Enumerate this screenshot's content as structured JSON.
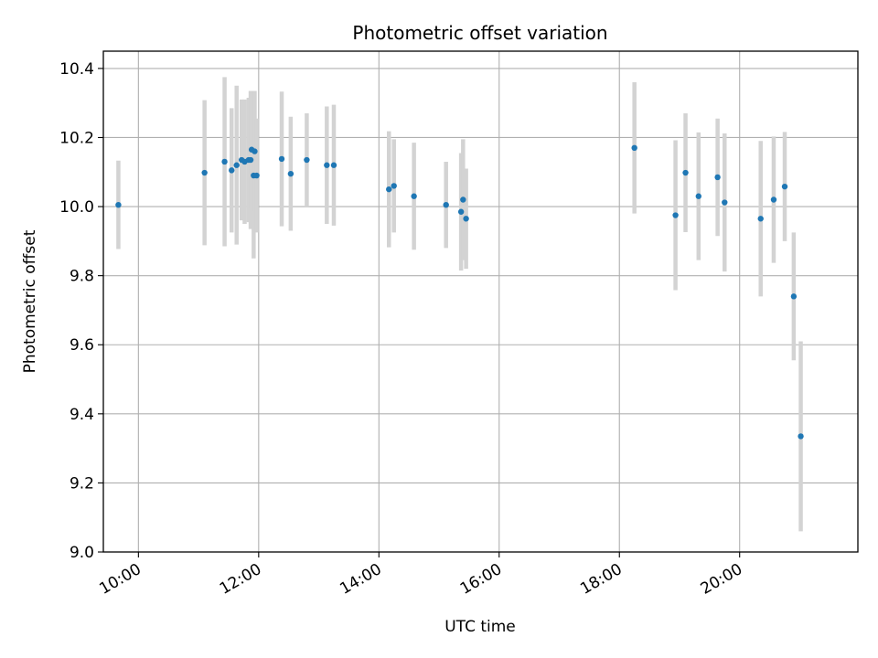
{
  "chart_data": {
    "type": "scatter",
    "title": "Photometric offset variation",
    "xlabel": "UTC time",
    "ylabel": "Photometric offset",
    "x_axis_type": "time",
    "xlim": [
      "09:25",
      "21:58"
    ],
    "ylim": [
      9.0,
      10.45
    ],
    "x_ticks": [
      "10:00",
      "12:00",
      "14:00",
      "16:00",
      "18:00",
      "20:00"
    ],
    "y_ticks": [
      9.0,
      9.2,
      9.4,
      9.6,
      9.8,
      10.0,
      10.2,
      10.4
    ],
    "y_tick_labels": [
      "9.0",
      "9.2",
      "9.4",
      "9.6",
      "9.8",
      "10.0",
      "10.2",
      "10.4"
    ],
    "grid": true,
    "legend": "none",
    "colors": {
      "marker": "#1f77b4",
      "errorbar": "#d3d3d3",
      "grid": "#b0b0b0"
    },
    "points": [
      {
        "x": "09:40",
        "y": 10.005,
        "err": 0.128
      },
      {
        "x": "11:06",
        "y": 10.098,
        "err": 0.21
      },
      {
        "x": "11:26",
        "y": 10.13,
        "err": 0.245
      },
      {
        "x": "11:33",
        "y": 10.105,
        "err": 0.18
      },
      {
        "x": "11:38",
        "y": 10.12,
        "err": 0.23
      },
      {
        "x": "11:43",
        "y": 10.135,
        "err": 0.175
      },
      {
        "x": "11:46",
        "y": 10.13,
        "err": 0.18
      },
      {
        "x": "11:50",
        "y": 10.135,
        "err": 0.18
      },
      {
        "x": "11:52",
        "y": 10.135,
        "err": 0.2
      },
      {
        "x": "11:53",
        "y": 10.165,
        "err": 0.17
      },
      {
        "x": "11:55",
        "y": 10.09,
        "err": 0.24
      },
      {
        "x": "11:56",
        "y": 10.16,
        "err": 0.175
      },
      {
        "x": "11:58",
        "y": 10.09,
        "err": 0.165
      },
      {
        "x": "12:23",
        "y": 10.138,
        "err": 0.195
      },
      {
        "x": "12:32",
        "y": 10.095,
        "err": 0.165
      },
      {
        "x": "12:48",
        "y": 10.135,
        "err": 0.135
      },
      {
        "x": "13:08",
        "y": 10.12,
        "err": 0.17
      },
      {
        "x": "13:15",
        "y": 10.12,
        "err": 0.175
      },
      {
        "x": "14:10",
        "y": 10.05,
        "err": 0.168
      },
      {
        "x": "14:15",
        "y": 10.06,
        "err": 0.135
      },
      {
        "x": "14:35",
        "y": 10.03,
        "err": 0.155
      },
      {
        "x": "15:07",
        "y": 10.005,
        "err": 0.125
      },
      {
        "x": "15:22",
        "y": 9.985,
        "err": 0.17
      },
      {
        "x": "15:24",
        "y": 10.02,
        "err": 0.175
      },
      {
        "x": "15:27",
        "y": 9.965,
        "err": 0.145
      },
      {
        "x": "18:15",
        "y": 10.17,
        "err": 0.19
      },
      {
        "x": "18:56",
        "y": 9.975,
        "err": 0.217
      },
      {
        "x": "19:06",
        "y": 10.098,
        "err": 0.172
      },
      {
        "x": "19:19",
        "y": 10.03,
        "err": 0.185
      },
      {
        "x": "19:38",
        "y": 10.085,
        "err": 0.17
      },
      {
        "x": "19:45",
        "y": 10.012,
        "err": 0.2
      },
      {
        "x": "20:21",
        "y": 9.965,
        "err": 0.225
      },
      {
        "x": "20:34",
        "y": 10.02,
        "err": 0.183
      },
      {
        "x": "20:45",
        "y": 10.058,
        "err": 0.158
      },
      {
        "x": "20:54",
        "y": 9.74,
        "err": 0.185
      },
      {
        "x": "21:01",
        "y": 9.335,
        "err": 0.275
      }
    ]
  }
}
